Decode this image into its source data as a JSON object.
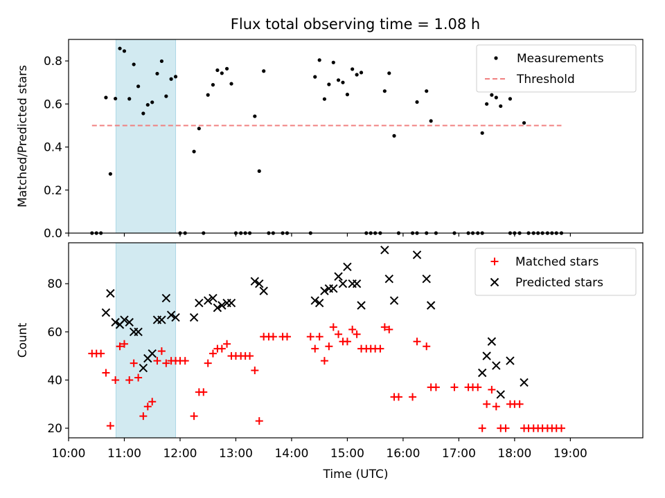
{
  "title": "Flux total observing time = 1.08 h",
  "colors": {
    "measurement": "#000000",
    "threshold": "#f08080",
    "matched": "#ff0000",
    "predicted": "#000000",
    "highlight": "#add8e6"
  },
  "chart_data": [
    {
      "type": "scatter",
      "ylabel": "Matched/Predicted stars",
      "xlabel": "",
      "x_unit": "hours UTC",
      "xlim": [
        10.0,
        20.3
      ],
      "ylim": [
        0.0,
        0.9
      ],
      "yticks": [
        0.0,
        0.2,
        0.4,
        0.6,
        0.8
      ],
      "ytick_labels": [
        "0.0",
        "0.2",
        "0.4",
        "0.6",
        "0.8"
      ],
      "shaded_span": [
        10.85,
        11.92
      ],
      "legend": {
        "placement": "top-right",
        "entries": [
          "Measurements",
          "Threshold"
        ]
      },
      "series": [
        {
          "name": "Measurements",
          "marker": "dot",
          "points": [
            [
              10.42,
              0.0
            ],
            [
              10.5,
              0.0
            ],
            [
              10.58,
              0.0
            ],
            [
              10.67,
              0.63
            ],
            [
              10.75,
              0.275
            ],
            [
              10.84,
              0.625
            ],
            [
              10.92,
              0.858
            ],
            [
              11.0,
              0.846
            ],
            [
              11.09,
              0.624
            ],
            [
              11.17,
              0.784
            ],
            [
              11.25,
              0.682
            ],
            [
              11.34,
              0.556
            ],
            [
              11.42,
              0.596
            ],
            [
              11.5,
              0.608
            ],
            [
              11.59,
              0.741
            ],
            [
              11.67,
              0.799
            ],
            [
              11.75,
              0.636
            ],
            [
              11.84,
              0.716
            ],
            [
              11.92,
              0.727
            ],
            [
              12.0,
              0.0
            ],
            [
              12.09,
              0.0
            ],
            [
              12.25,
              0.379
            ],
            [
              12.34,
              0.486
            ],
            [
              12.42,
              0.0
            ],
            [
              12.5,
              0.642
            ],
            [
              12.59,
              0.689
            ],
            [
              12.67,
              0.757
            ],
            [
              12.75,
              0.743
            ],
            [
              12.84,
              0.764
            ],
            [
              12.92,
              0.694
            ],
            [
              13.0,
              0.0
            ],
            [
              13.09,
              0.0
            ],
            [
              13.17,
              0.0
            ],
            [
              13.25,
              0.0
            ],
            [
              13.34,
              0.543
            ],
            [
              13.42,
              0.288
            ],
            [
              13.5,
              0.753
            ],
            [
              13.59,
              0.0
            ],
            [
              13.67,
              0.0
            ],
            [
              13.84,
              0.0
            ],
            [
              13.92,
              0.0
            ],
            [
              14.34,
              0.0
            ],
            [
              14.42,
              0.726
            ],
            [
              14.5,
              0.804
            ],
            [
              14.59,
              0.623
            ],
            [
              14.67,
              0.691
            ],
            [
              14.75,
              0.793
            ],
            [
              14.84,
              0.711
            ],
            [
              14.92,
              0.7
            ],
            [
              15.0,
              0.644
            ],
            [
              15.09,
              0.762
            ],
            [
              15.17,
              0.736
            ],
            [
              15.25,
              0.746
            ],
            [
              15.34,
              0.0
            ],
            [
              15.42,
              0.0
            ],
            [
              15.5,
              0.0
            ],
            [
              15.59,
              0.0
            ],
            [
              15.67,
              0.66
            ],
            [
              15.75,
              0.743
            ],
            [
              15.84,
              0.452
            ],
            [
              15.92,
              0.0
            ],
            [
              16.17,
              0.0
            ],
            [
              16.25,
              0.0
            ],
            [
              16.25,
              0.609
            ],
            [
              16.42,
              0.0
            ],
            [
              16.42,
              0.66
            ],
            [
              16.5,
              0.521
            ],
            [
              16.59,
              0.0
            ],
            [
              16.92,
              0.0
            ],
            [
              17.17,
              0.0
            ],
            [
              17.25,
              0.0
            ],
            [
              17.34,
              0.0
            ],
            [
              17.42,
              0.0
            ],
            [
              17.42,
              0.465
            ],
            [
              17.5,
              0.6
            ],
            [
              17.59,
              0.642
            ],
            [
              17.67,
              0.63
            ],
            [
              17.75,
              0.59
            ],
            [
              17.92,
              0.624
            ],
            [
              17.92,
              0.0
            ],
            [
              18.0,
              0.0
            ],
            [
              18.09,
              0.0
            ],
            [
              18.17,
              0.512
            ],
            [
              18.25,
              0.0
            ],
            [
              18.34,
              0.0
            ],
            [
              18.42,
              0.0
            ],
            [
              18.5,
              0.0
            ],
            [
              18.59,
              0.0
            ],
            [
              18.67,
              0.0
            ],
            [
              18.75,
              0.0
            ],
            [
              18.84,
              0.0
            ]
          ]
        },
        {
          "name": "Threshold",
          "marker": "dashed-line",
          "points": [
            [
              10.42,
              0.5
            ],
            [
              18.84,
              0.5
            ]
          ]
        }
      ]
    },
    {
      "type": "scatter",
      "ylabel": "Count",
      "xlabel": "Time (UTC)",
      "x_unit": "hours UTC",
      "xlim": [
        10.0,
        20.3
      ],
      "ylim": [
        16,
        97
      ],
      "yticks": [
        20,
        40,
        60,
        80
      ],
      "ytick_labels": [
        "20",
        "40",
        "60",
        "80"
      ],
      "xticks": [
        10,
        11,
        12,
        13,
        14,
        15,
        16,
        17,
        18,
        19
      ],
      "xtick_labels": [
        "10:00",
        "11:00",
        "12:00",
        "13:00",
        "14:00",
        "15:00",
        "16:00",
        "17:00",
        "18:00",
        "19:00"
      ],
      "shaded_span": [
        10.85,
        11.92
      ],
      "legend": {
        "placement": "top-right",
        "entries": [
          "Matched stars",
          "Predicted stars"
        ]
      },
      "series": [
        {
          "name": "Matched stars",
          "marker": "plus",
          "points": [
            [
              10.42,
              51
            ],
            [
              10.5,
              51
            ],
            [
              10.58,
              51
            ],
            [
              10.67,
              43
            ],
            [
              10.75,
              21
            ],
            [
              10.84,
              40
            ],
            [
              10.92,
              54
            ],
            [
              11.0,
              55
            ],
            [
              11.09,
              40
            ],
            [
              11.17,
              47
            ],
            [
              11.25,
              41
            ],
            [
              11.34,
              25
            ],
            [
              11.42,
              29
            ],
            [
              11.5,
              31
            ],
            [
              11.59,
              48
            ],
            [
              11.67,
              52
            ],
            [
              11.75,
              47
            ],
            [
              11.84,
              48
            ],
            [
              11.92,
              48
            ],
            [
              12.0,
              48
            ],
            [
              12.09,
              48
            ],
            [
              12.25,
              25
            ],
            [
              12.34,
              35
            ],
            [
              12.42,
              35
            ],
            [
              12.5,
              47
            ],
            [
              12.59,
              51
            ],
            [
              12.67,
              53
            ],
            [
              12.75,
              53
            ],
            [
              12.84,
              55
            ],
            [
              12.92,
              50
            ],
            [
              13.0,
              50
            ],
            [
              13.09,
              50
            ],
            [
              13.17,
              50
            ],
            [
              13.25,
              50
            ],
            [
              13.34,
              44
            ],
            [
              13.42,
              23
            ],
            [
              13.5,
              58
            ],
            [
              13.59,
              58
            ],
            [
              13.67,
              58
            ],
            [
              13.84,
              58
            ],
            [
              13.92,
              58
            ],
            [
              14.34,
              58
            ],
            [
              14.42,
              53
            ],
            [
              14.5,
              58
            ],
            [
              14.59,
              48
            ],
            [
              14.67,
              54
            ],
            [
              14.75,
              62
            ],
            [
              14.84,
              59
            ],
            [
              14.92,
              56
            ],
            [
              15.0,
              56
            ],
            [
              15.09,
              61
            ],
            [
              15.17,
              59
            ],
            [
              15.25,
              53
            ],
            [
              15.34,
              53
            ],
            [
              15.42,
              53
            ],
            [
              15.5,
              53
            ],
            [
              15.59,
              53
            ],
            [
              15.67,
              62
            ],
            [
              15.75,
              61
            ],
            [
              15.84,
              33
            ],
            [
              15.92,
              33
            ],
            [
              16.17,
              33
            ],
            [
              16.25,
              56
            ],
            [
              16.42,
              54
            ],
            [
              16.5,
              37
            ],
            [
              16.59,
              37
            ],
            [
              16.92,
              37
            ],
            [
              17.17,
              37
            ],
            [
              17.25,
              37
            ],
            [
              17.34,
              37
            ],
            [
              17.42,
              20
            ],
            [
              17.5,
              30
            ],
            [
              17.59,
              36
            ],
            [
              17.67,
              29
            ],
            [
              17.75,
              20
            ],
            [
              17.84,
              20
            ],
            [
              17.92,
              30
            ],
            [
              18.0,
              30
            ],
            [
              18.09,
              30
            ],
            [
              18.17,
              20
            ],
            [
              18.25,
              20
            ],
            [
              18.34,
              20
            ],
            [
              18.42,
              20
            ],
            [
              18.5,
              20
            ],
            [
              18.59,
              20
            ],
            [
              18.67,
              20
            ],
            [
              18.75,
              20
            ],
            [
              18.84,
              20
            ]
          ]
        },
        {
          "name": "Predicted stars",
          "marker": "x",
          "points": [
            [
              10.67,
              68
            ],
            [
              10.75,
              76
            ],
            [
              10.84,
              64
            ],
            [
              10.92,
              63
            ],
            [
              11.0,
              65
            ],
            [
              11.09,
              64
            ],
            [
              11.17,
              60
            ],
            [
              11.25,
              60
            ],
            [
              11.34,
              45
            ],
            [
              11.42,
              49
            ],
            [
              11.5,
              51
            ],
            [
              11.59,
              65
            ],
            [
              11.67,
              65
            ],
            [
              11.75,
              74
            ],
            [
              11.84,
              67
            ],
            [
              11.92,
              66
            ],
            [
              12.25,
              66
            ],
            [
              12.34,
              72
            ],
            [
              12.5,
              73
            ],
            [
              12.59,
              74
            ],
            [
              12.67,
              70
            ],
            [
              12.75,
              71
            ],
            [
              12.84,
              72
            ],
            [
              12.92,
              72
            ],
            [
              13.34,
              81
            ],
            [
              13.42,
              80
            ],
            [
              13.5,
              77
            ],
            [
              14.42,
              73
            ],
            [
              14.5,
              72
            ],
            [
              14.59,
              77
            ],
            [
              14.67,
              78
            ],
            [
              14.75,
              78
            ],
            [
              14.84,
              83
            ],
            [
              14.92,
              80
            ],
            [
              15.0,
              87
            ],
            [
              15.09,
              80
            ],
            [
              15.17,
              80
            ],
            [
              15.25,
              71
            ],
            [
              15.67,
              94
            ],
            [
              15.75,
              82
            ],
            [
              15.84,
              73
            ],
            [
              16.25,
              92
            ],
            [
              16.42,
              82
            ],
            [
              16.5,
              71
            ],
            [
              17.42,
              43
            ],
            [
              17.5,
              50
            ],
            [
              17.59,
              56
            ],
            [
              17.67,
              46
            ],
            [
              17.75,
              34
            ],
            [
              17.92,
              48
            ],
            [
              18.17,
              39
            ]
          ]
        }
      ]
    }
  ]
}
